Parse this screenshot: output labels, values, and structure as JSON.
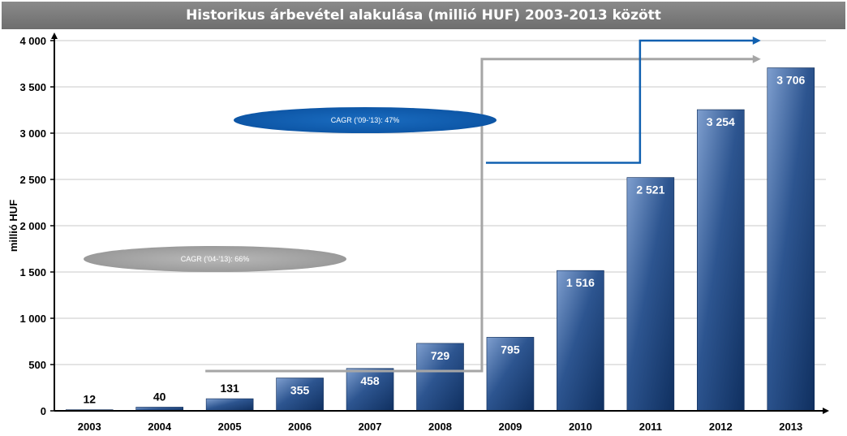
{
  "chart_data": {
    "type": "bar",
    "title": "Historikus árbevétel alakulása (millió HUF) 2003-2013 között",
    "ylabel": "millió HUF",
    "xlabel": "",
    "categories": [
      "2003",
      "2004",
      "2005",
      "2006",
      "2007",
      "2008",
      "2009",
      "2010",
      "2011",
      "2012",
      "2013"
    ],
    "values": [
      12,
      40,
      131,
      355,
      458,
      729,
      795,
      1516,
      2521,
      3254,
      3706
    ],
    "value_labels": [
      "12",
      "40",
      "131",
      "355",
      "458",
      "729",
      "795",
      "1 516",
      "2 521",
      "3 254",
      "3 706"
    ],
    "ylim": [
      0,
      4000
    ],
    "yticks": [
      0,
      500,
      1000,
      1500,
      2000,
      2500,
      3000,
      3500,
      4000
    ],
    "ytick_labels": [
      "0",
      "500",
      "1 000",
      "1 500",
      "2 000",
      "2 500",
      "3 000",
      "3 500",
      "4 000"
    ],
    "grid": true,
    "bar_color_top": "#7f9fcf",
    "bar_color_bottom": "#0f2f5f",
    "annotations": [
      {
        "text": "CAGR (’04-’13): 66%",
        "color": "#a6a6a6",
        "from_category": "2005",
        "from_value": 430,
        "turn_category": "2009",
        "to_value": 3800
      },
      {
        "text": "CAGR (’09-’13): 47%",
        "color": "#1060b0",
        "from_category": "2009",
        "from_value": 2680,
        "turn_category": "2011",
        "to_value": 4000
      }
    ]
  }
}
